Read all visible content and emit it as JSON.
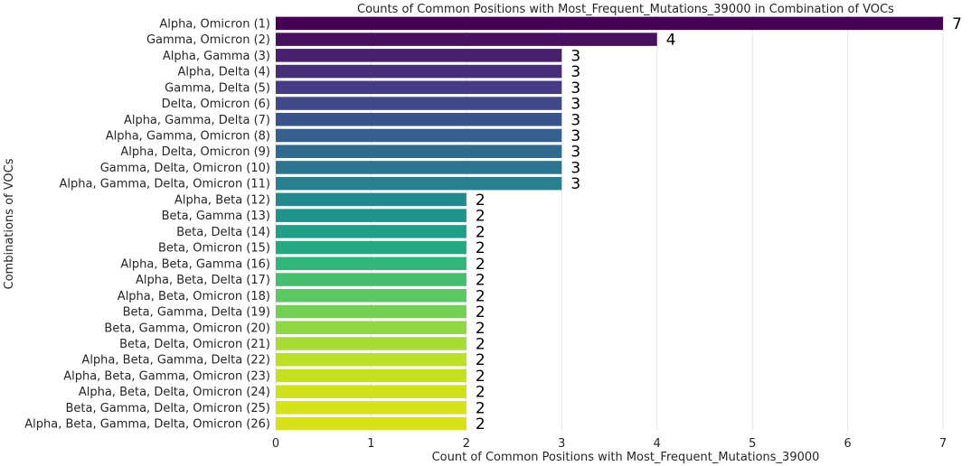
{
  "chart_data": {
    "type": "bar",
    "orientation": "horizontal",
    "title": "Counts of Common Positions with Most_Frequent_Mutations_39000 in Combination of VOCs",
    "xlabel": "Count of Common Positions with Most_Frequent_Mutations_39000",
    "ylabel": "Combinations of VOCs",
    "xlim": [
      0,
      7.35
    ],
    "xticks": [
      "0",
      "1",
      "2",
      "3",
      "4",
      "5",
      "6",
      "7"
    ],
    "grid": "vertical",
    "categories": [
      "Alpha, Omicron (1)",
      "Gamma, Omicron (2)",
      "Alpha, Gamma (3)",
      "Alpha, Delta (4)",
      "Gamma, Delta (5)",
      "Delta, Omicron (6)",
      "Alpha, Gamma, Delta (7)",
      "Alpha, Gamma, Omicron (8)",
      "Alpha, Delta, Omicron (9)",
      "Gamma, Delta, Omicron (10)",
      "Alpha, Gamma, Delta, Omicron (11)",
      "Alpha, Beta (12)",
      "Beta, Gamma (13)",
      "Beta, Delta (14)",
      "Beta, Omicron (15)",
      "Alpha, Beta, Gamma (16)",
      "Alpha, Beta, Delta (17)",
      "Alpha, Beta, Omicron (18)",
      "Beta, Gamma, Delta (19)",
      "Beta, Gamma, Omicron (20)",
      "Beta, Delta, Omicron (21)",
      "Alpha, Beta, Gamma, Delta (22)",
      "Alpha, Beta, Gamma, Omicron (23)",
      "Alpha, Beta, Delta, Omicron (24)",
      "Beta, Gamma, Delta, Omicron (25)",
      "Alpha, Beta, Gamma, Delta, Omicron (26)"
    ],
    "values": [
      7,
      4,
      3,
      3,
      3,
      3,
      3,
      3,
      3,
      3,
      3,
      2,
      2,
      2,
      2,
      2,
      2,
      2,
      2,
      2,
      2,
      2,
      2,
      2,
      2,
      2
    ],
    "data_labels": [
      "7",
      "4",
      "3",
      "3",
      "3",
      "3",
      "3",
      "3",
      "3",
      "3",
      "3",
      "2",
      "2",
      "2",
      "2",
      "2",
      "2",
      "2",
      "2",
      "2",
      "2",
      "2",
      "2",
      "2",
      "2",
      "2"
    ],
    "colors": [
      "#440154",
      "#471365",
      "#482475",
      "#463480",
      "#414487",
      "#3b528b",
      "#355f8d",
      "#2f6c8e",
      "#2a788e",
      "#25848e",
      "#21918c",
      "#1e9c89",
      "#22a884",
      "#2fb47c",
      "#44bf70",
      "#5ec962",
      "#7ad151",
      "#9bd93c",
      "#bddf26",
      "#d1e21b",
      "#3b528b",
      "#2a788e",
      "#21918c",
      "#5ec962",
      "#bddf26",
      "#fde725"
    ]
  }
}
